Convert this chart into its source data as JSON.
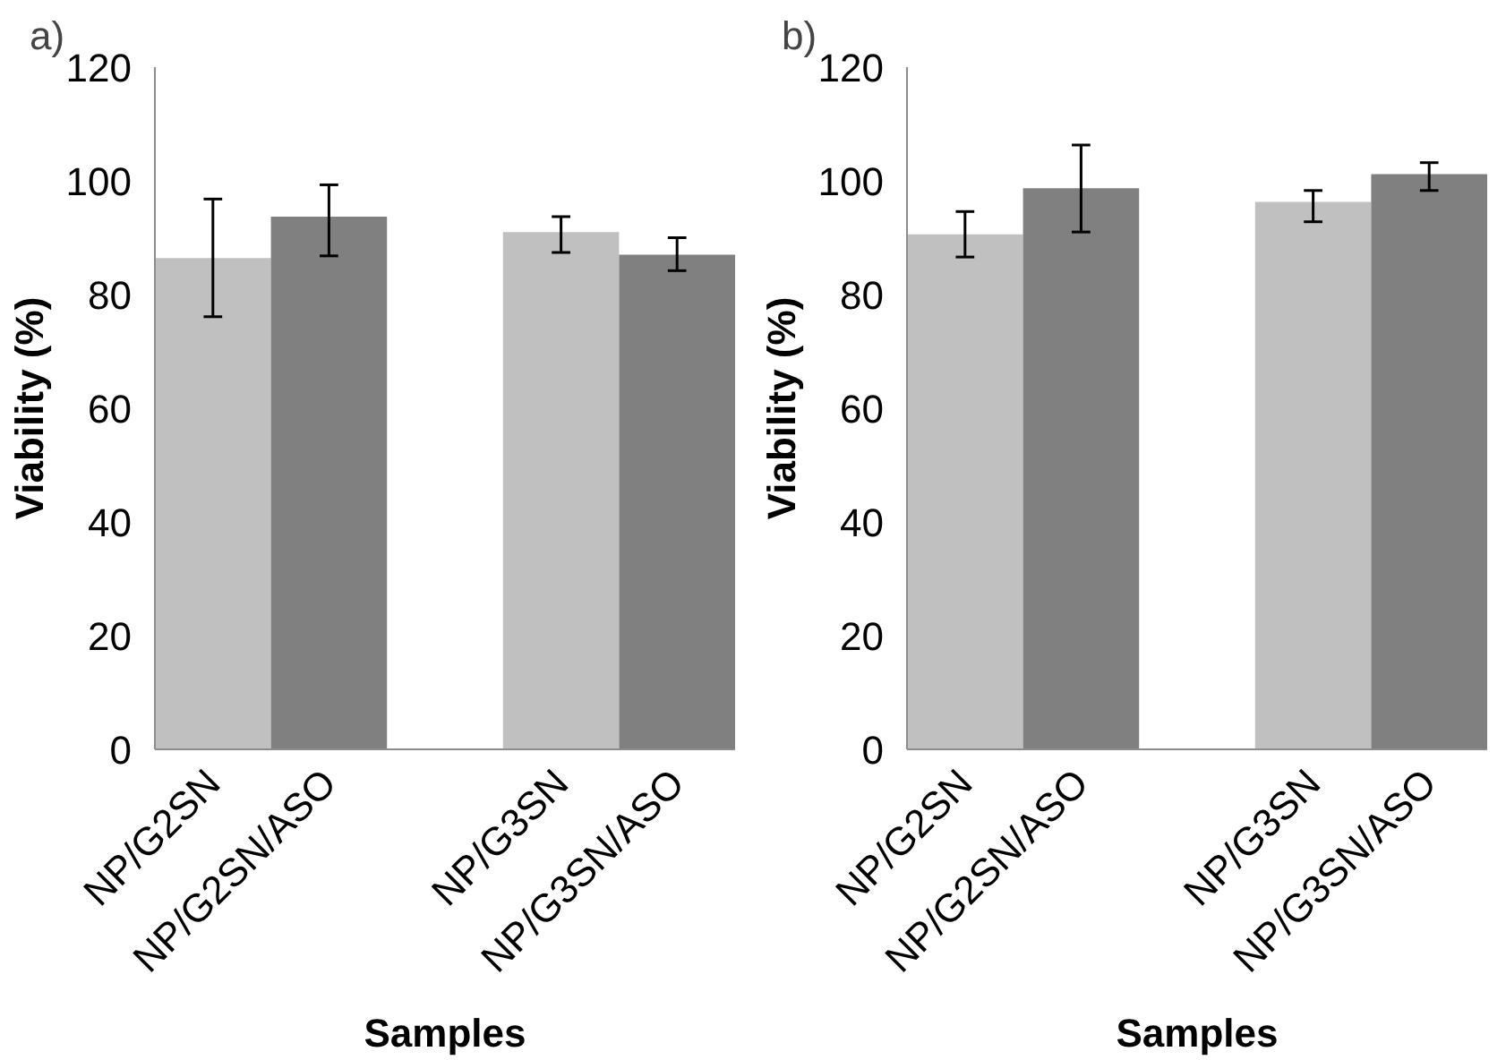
{
  "chart_data": [
    {
      "type": "bar",
      "annotations": [
        "a)"
      ],
      "xlabel": "Samples",
      "ylabel": "Viability (%)",
      "categories": [
        "NP/G2SN",
        "NP/G2SN/ASO",
        null,
        "NP/G3SN",
        "NP/G3SN/ASO"
      ],
      "values": [
        86.4,
        93.7,
        null,
        91.0,
        87.0
      ],
      "colors": [
        "#c0c0c0",
        "#808080",
        null,
        "#c0c0c0",
        "#808080"
      ],
      "errors": [
        [
          76.1,
          96.8
        ],
        [
          86.8,
          99.3
        ],
        null,
        [
          87.4,
          93.7
        ],
        [
          84.2,
          90.0
        ]
      ],
      "ylim": [
        0,
        120
      ],
      "yticks": [
        0,
        20,
        40,
        60,
        80,
        100,
        120
      ],
      "grid": false
    },
    {
      "type": "bar",
      "annotations": [
        "b)"
      ],
      "xlabel": "Samples",
      "ylabel": "Viability (%)",
      "categories": [
        "NP/G2SN",
        "NP/G2SN/ASO",
        null,
        "NP/G3SN",
        "NP/G3SN/ASO"
      ],
      "values": [
        90.6,
        98.7,
        null,
        96.3,
        101.2
      ],
      "colors": [
        "#c0c0c0",
        "#808080",
        null,
        "#c0c0c0",
        "#808080"
      ],
      "errors": [
        [
          86.6,
          94.6
        ],
        [
          91.0,
          106.3
        ],
        null,
        [
          92.8,
          98.3
        ],
        [
          98.3,
          103.2
        ]
      ],
      "ylim": [
        0,
        120
      ],
      "yticks": [
        0,
        20,
        40,
        60,
        80,
        100,
        120
      ],
      "grid": false
    }
  ]
}
